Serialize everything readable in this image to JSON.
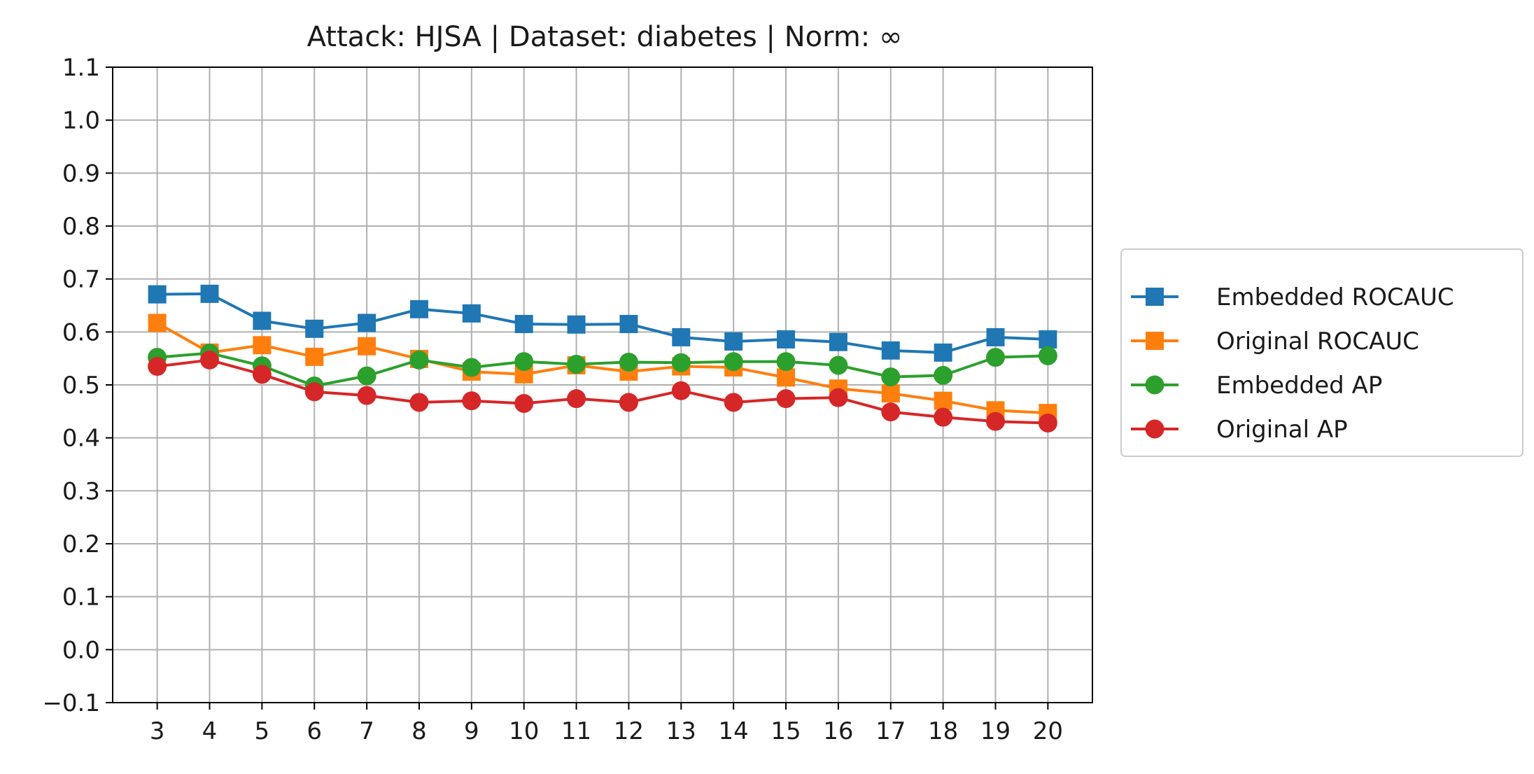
{
  "chart_data": {
    "type": "line",
    "title": "Attack: HJSA | Dataset: diabetes | Norm: ∞",
    "xlabel": "",
    "ylabel": "",
    "x": [
      3,
      4,
      5,
      6,
      7,
      8,
      9,
      10,
      11,
      12,
      13,
      14,
      15,
      16,
      17,
      18,
      19,
      20
    ],
    "x_tick_labels": [
      "3",
      "4",
      "5",
      "6",
      "7",
      "8",
      "9",
      "10",
      "11",
      "12",
      "13",
      "14",
      "15",
      "16",
      "17",
      "18",
      "19",
      "20"
    ],
    "y_ticks": [
      -0.1,
      0.0,
      0.1,
      0.2,
      0.3,
      0.4,
      0.5,
      0.6,
      0.7,
      0.8,
      0.9,
      1.0,
      1.1
    ],
    "y_tick_labels": [
      "−0.1",
      "0.0",
      "0.1",
      "0.2",
      "0.3",
      "0.4",
      "0.5",
      "0.6",
      "0.7",
      "0.8",
      "0.9",
      "1.0",
      "1.1"
    ],
    "xlim": [
      2.15,
      20.85
    ],
    "ylim": [
      -0.1,
      1.1
    ],
    "grid": true,
    "legend_position": "right-outside",
    "series": [
      {
        "name": "Embedded ROCAUC",
        "color": "#1f77b4",
        "marker": "square",
        "values": [
          0.671,
          0.672,
          0.621,
          0.606,
          0.617,
          0.643,
          0.635,
          0.615,
          0.614,
          0.615,
          0.59,
          0.582,
          0.586,
          0.581,
          0.565,
          0.561,
          0.59,
          0.586
        ]
      },
      {
        "name": "Original ROCAUC",
        "color": "#ff7f0e",
        "marker": "square",
        "values": [
          0.617,
          0.561,
          0.575,
          0.553,
          0.573,
          0.549,
          0.525,
          0.52,
          0.537,
          0.525,
          0.535,
          0.533,
          0.514,
          0.493,
          0.484,
          0.47,
          0.452,
          0.447
        ]
      },
      {
        "name": "Embedded AP",
        "color": "#2ca02c",
        "marker": "circle",
        "values": [
          0.552,
          0.56,
          0.536,
          0.498,
          0.517,
          0.547,
          0.533,
          0.544,
          0.539,
          0.543,
          0.542,
          0.544,
          0.544,
          0.537,
          0.515,
          0.518,
          0.552,
          0.555
        ]
      },
      {
        "name": "Original AP",
        "color": "#d62728",
        "marker": "circle",
        "values": [
          0.535,
          0.547,
          0.52,
          0.487,
          0.48,
          0.467,
          0.47,
          0.465,
          0.474,
          0.467,
          0.489,
          0.467,
          0.474,
          0.476,
          0.449,
          0.439,
          0.431,
          0.428
        ]
      }
    ]
  }
}
